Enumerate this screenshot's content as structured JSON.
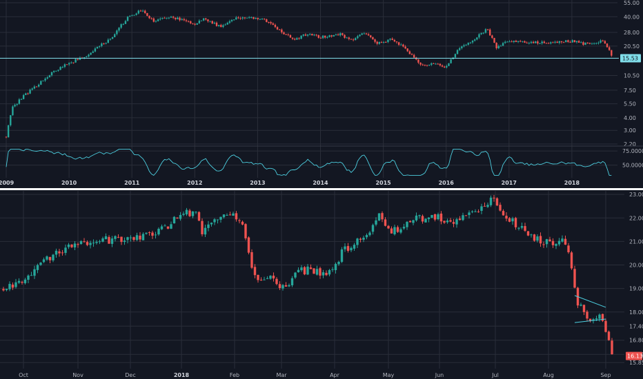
{
  "colors": {
    "background": "#131722",
    "grid": "#2a2e39",
    "up": "#26a69a",
    "down": "#ef5350",
    "rsi_line": "#4dd0e1",
    "hline": "#80deea",
    "separator": "#ffffff",
    "axis_text": "#b2b5be"
  },
  "chart_data": [
    {
      "type": "candlestick",
      "title": "",
      "x_labels": [
        "2009",
        "2010",
        "2011",
        "2012",
        "2013",
        "2014",
        "2015",
        "2016",
        "2017",
        "2018"
      ],
      "y_scale": "log",
      "y_ticks": [
        "55.00",
        "40.00",
        "28.00",
        "20.50",
        "15.50",
        "10.50",
        "7.50",
        "5.50",
        "4.00",
        "3.00",
        "2.20"
      ],
      "ylim": [
        2.2,
        55
      ],
      "horizontal_line": 15.53,
      "last_price_label": "15.53",
      "path_keypoints": [
        [
          2009.0,
          2.6
        ],
        [
          2009.1,
          5.0
        ],
        [
          2009.5,
          8.5
        ],
        [
          2009.9,
          13.0
        ],
        [
          2010.3,
          16.5
        ],
        [
          2010.7,
          25.0
        ],
        [
          2010.95,
          40.0
        ],
        [
          2011.15,
          46.0
        ],
        [
          2011.35,
          36.0
        ],
        [
          2011.6,
          40.0
        ],
        [
          2012.0,
          34.0
        ],
        [
          2012.15,
          38.0
        ],
        [
          2012.4,
          32.0
        ],
        [
          2012.65,
          39.0
        ],
        [
          2013.0,
          39.0
        ],
        [
          2013.2,
          35.0
        ],
        [
          2013.4,
          27.0
        ],
        [
          2013.6,
          24.0
        ],
        [
          2013.8,
          27.0
        ],
        [
          2014.0,
          25.0
        ],
        [
          2014.3,
          27.0
        ],
        [
          2014.5,
          23.0
        ],
        [
          2014.7,
          28.0
        ],
        [
          2014.9,
          22.0
        ],
        [
          2015.15,
          24.0
        ],
        [
          2015.35,
          19.0
        ],
        [
          2015.6,
          13.0
        ],
        [
          2015.8,
          14.0
        ],
        [
          2016.0,
          12.5
        ],
        [
          2016.2,
          19.0
        ],
        [
          2016.45,
          24.0
        ],
        [
          2016.65,
          30.0
        ],
        [
          2016.8,
          20.0
        ],
        [
          2017.0,
          23.0
        ],
        [
          2017.5,
          22.0
        ],
        [
          2018.0,
          23.0
        ],
        [
          2018.2,
          21.5
        ],
        [
          2018.5,
          23.0
        ],
        [
          2018.63,
          16.8
        ]
      ]
    },
    {
      "type": "line",
      "title": "",
      "y_ticks": [
        "75.0000",
        "50.0000"
      ],
      "ylim": [
        30,
        80
      ],
      "x_labels": [
        "2009",
        "2010",
        "2011",
        "2012",
        "2013",
        "2014",
        "2015",
        "2016",
        "2017",
        "2018"
      ]
    },
    {
      "type": "candlestick",
      "title": "",
      "x_labels": [
        "Oct",
        "Nov",
        "Dec",
        "2018",
        "Feb",
        "Mar",
        "Apr",
        "May",
        "Jun",
        "Jul",
        "Aug",
        "Sep"
      ],
      "y_ticks": [
        "23.00",
        "22.00",
        "21.00",
        "20.00",
        "19.00",
        "18.00",
        "17.40",
        "16.80",
        "16.20",
        "15.85"
      ],
      "ylim": [
        15.65,
        23.15
      ],
      "last_price_label": "16.13",
      "path_keypoints": [
        [
          0,
          19.0
        ],
        [
          6,
          19.2
        ],
        [
          12,
          20.0
        ],
        [
          20,
          20.8
        ],
        [
          28,
          21.0
        ],
        [
          36,
          21.1
        ],
        [
          44,
          21.2
        ],
        [
          52,
          21.6
        ],
        [
          58,
          22.2
        ],
        [
          62,
          22.2
        ],
        [
          64,
          21.4
        ],
        [
          68,
          22.0
        ],
        [
          73,
          22.3
        ],
        [
          77,
          21.8
        ],
        [
          80,
          20.0
        ],
        [
          82,
          19.3
        ],
        [
          86,
          19.5
        ],
        [
          90,
          19.0
        ],
        [
          95,
          19.7
        ],
        [
          100,
          19.8
        ],
        [
          104,
          19.5
        ],
        [
          110,
          20.7
        ],
        [
          114,
          21.0
        ],
        [
          118,
          21.5
        ],
        [
          121,
          22.2
        ],
        [
          124,
          21.4
        ],
        [
          128,
          21.6
        ],
        [
          134,
          22.0
        ],
        [
          140,
          22.0
        ],
        [
          146,
          21.9
        ],
        [
          150,
          22.1
        ],
        [
          155,
          22.5
        ],
        [
          158,
          22.8
        ],
        [
          162,
          22.0
        ],
        [
          166,
          21.7
        ],
        [
          170,
          21.2
        ],
        [
          174,
          21.0
        ],
        [
          178,
          20.9
        ],
        [
          181,
          21.0
        ],
        [
          183,
          19.9
        ],
        [
          185,
          18.3
        ],
        [
          189,
          17.7
        ],
        [
          192,
          18.0
        ],
        [
          194,
          17.2
        ],
        [
          196,
          16.2
        ]
      ]
    }
  ]
}
